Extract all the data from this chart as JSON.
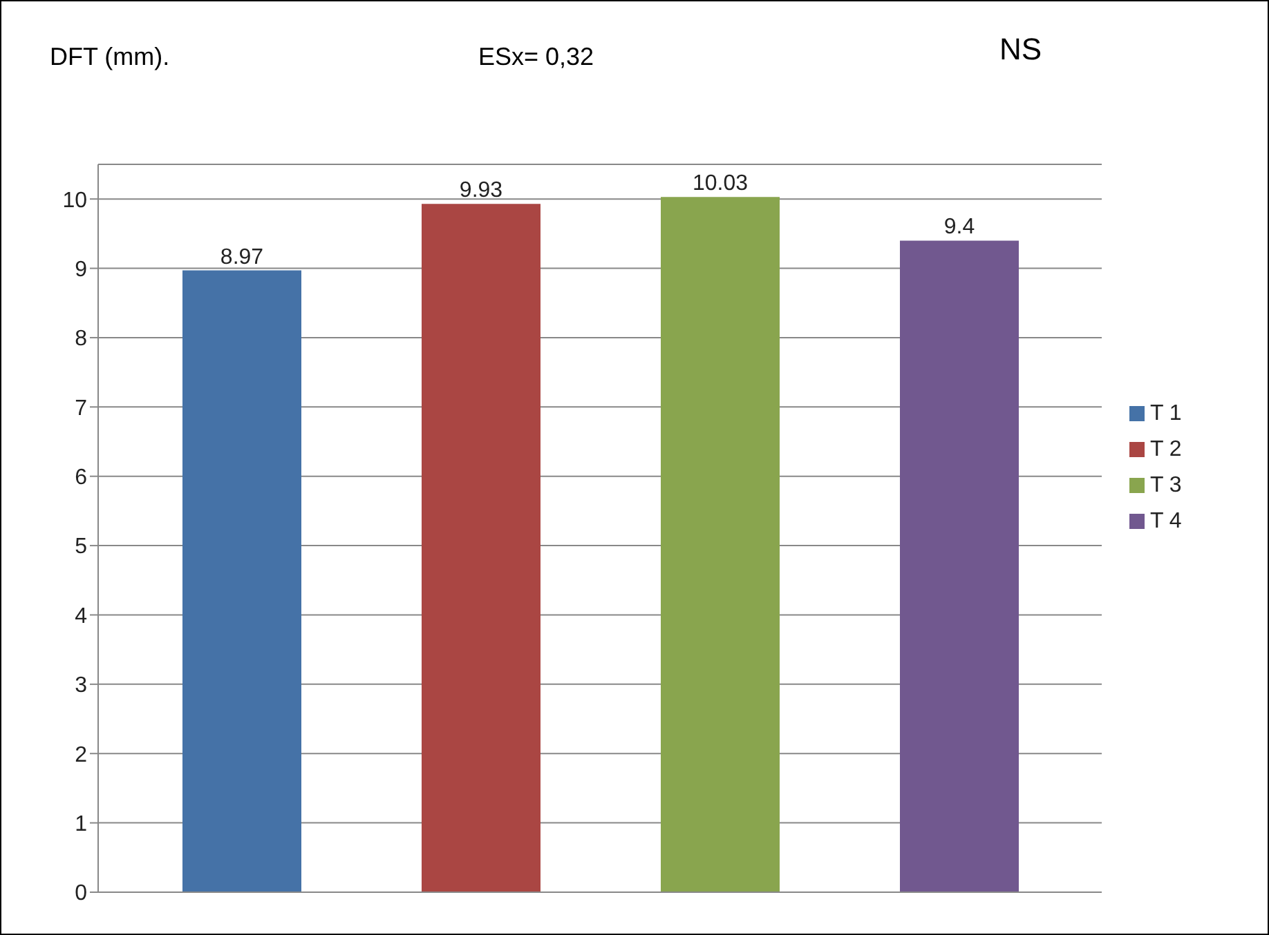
{
  "chart_data": {
    "type": "bar",
    "ylabel": "DFT  (mm).",
    "annotations": [
      "ESx= 0,32",
      "NS"
    ],
    "categories": [
      null
    ],
    "series": [
      {
        "name": "T 1",
        "color": "#4572a7",
        "values": [
          8.97
        ]
      },
      {
        "name": "T 2",
        "color": "#aa4643",
        "values": [
          9.93
        ]
      },
      {
        "name": "T 3",
        "color": "#89a54e",
        "values": [
          10.03
        ]
      },
      {
        "name": "T 4",
        "color": "#71588f",
        "values": [
          9.4
        ]
      }
    ],
    "ylim": [
      0,
      10.5
    ],
    "yticks": [
      0,
      1,
      2,
      3,
      4,
      5,
      6,
      7,
      8,
      9,
      10
    ],
    "grid": "y",
    "legend": "right",
    "data_labels": true,
    "tick_labels": "y"
  }
}
